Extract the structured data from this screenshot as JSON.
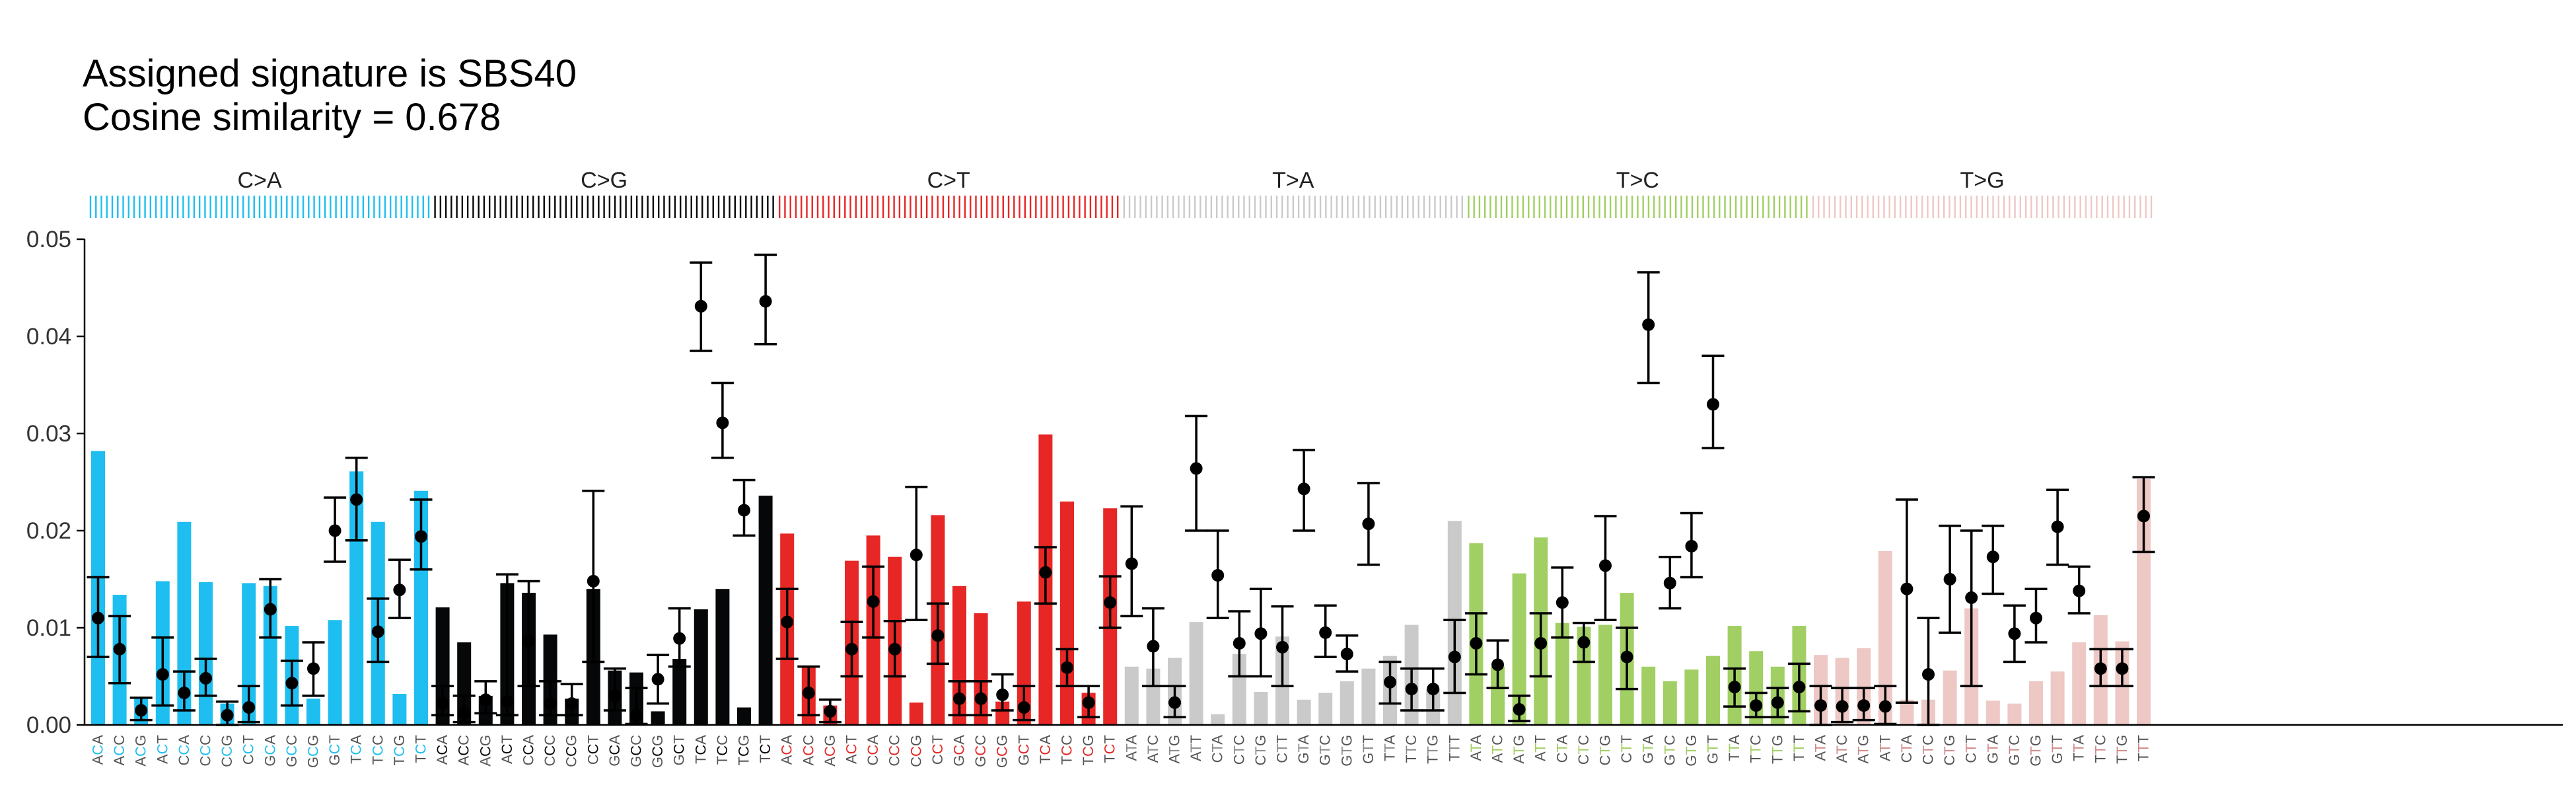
{
  "chart_data": {
    "type": "bar",
    "title": [
      "Assigned signature is SBS40",
      "Cosine similarity = 0.678"
    ],
    "xlabel": "",
    "ylabel": "",
    "ylim": [
      0,
      0.05
    ],
    "yticks": [
      0.0,
      0.01,
      0.02,
      0.03,
      0.04,
      0.05
    ],
    "ytick_labels": [
      "0.00",
      "0.01",
      "0.02",
      "0.03",
      "0.04",
      "0.05"
    ],
    "grid": false,
    "legend": "none",
    "groups": [
      {
        "label": "C>A",
        "color": "#1ebff0",
        "ref": "C"
      },
      {
        "label": "C>G",
        "color": "#050708",
        "ref": "C"
      },
      {
        "label": "C>T",
        "color": "#e62725",
        "ref": "C"
      },
      {
        "label": "T>A",
        "color": "#cbcacb",
        "ref": "T"
      },
      {
        "label": "T>C",
        "color": "#a1cf64",
        "ref": "T"
      },
      {
        "label": "T>G",
        "color": "#edc8c5",
        "ref": "T"
      }
    ],
    "contexts": [
      "A_A",
      "A_C",
      "A_G",
      "A_T",
      "C_A",
      "C_C",
      "C_G",
      "C_T",
      "G_A",
      "G_C",
      "G_G",
      "G_T",
      "T_A",
      "T_C",
      "T_G",
      "T_T"
    ],
    "bar_series": {
      "values": [
        [
          0.0282,
          0.0134,
          0.0027,
          0.0148,
          0.0209,
          0.0147,
          0.0022,
          0.0146,
          0.0143,
          0.0102,
          0.0027,
          0.0108,
          0.0261,
          0.0209,
          0.0032,
          0.0241
        ],
        [
          0.0121,
          0.0085,
          0.003,
          0.0146,
          0.0136,
          0.0093,
          0.0027,
          0.014,
          0.0056,
          0.0054,
          0.0014,
          0.0068,
          0.0119,
          0.014,
          0.0018,
          0.0236
        ],
        [
          0.0197,
          0.0061,
          0.002,
          0.0169,
          0.0195,
          0.0173,
          0.0023,
          0.0216,
          0.0143,
          0.0115,
          0.0024,
          0.0127,
          0.0299,
          0.023,
          0.0033,
          0.0223
        ],
        [
          0.006,
          0.0058,
          0.0069,
          0.0106,
          0.0011,
          0.0073,
          0.0034,
          0.0091,
          0.0026,
          0.0033,
          0.0045,
          0.0058,
          0.0071,
          0.0103,
          0.0037,
          0.021
        ],
        [
          0.0187,
          0.006,
          0.0156,
          0.0193,
          0.0105,
          0.0101,
          0.0103,
          0.0136,
          0.006,
          0.0045,
          0.0057,
          0.0071,
          0.0102,
          0.0076,
          0.006,
          0.0102
        ],
        [
          0.0072,
          0.0069,
          0.0079,
          0.0179,
          0.0026,
          0.0026,
          0.0056,
          0.012,
          0.0025,
          0.0022,
          0.0045,
          0.0055,
          0.0085,
          0.0113,
          0.0086,
          0.0253
        ]
      ]
    },
    "point_series": {
      "values": [
        [
          0.011,
          0.0078,
          0.0015,
          0.0052,
          0.0033,
          0.0048,
          0.001,
          0.0018,
          0.0119,
          0.0043,
          0.0058,
          0.02,
          0.0232,
          0.0096,
          0.0139,
          0.0194
        ],
        [
          0.0022,
          0.0012,
          0.0026,
          0.0024,
          0.0086,
          0.0022,
          0.0022,
          0.0148,
          0.003,
          0.001,
          0.0047,
          0.0089,
          0.0431,
          0.0311,
          0.0221,
          0.0436
        ],
        [
          0.0106,
          0.0033,
          0.0014,
          0.0078,
          0.0127,
          0.0078,
          0.0175,
          0.0092,
          0.0027,
          0.0027,
          0.0031,
          0.0018,
          0.0157,
          0.0059,
          0.0023,
          0.0126
        ],
        [
          0.0166,
          0.0081,
          0.0023,
          0.0264,
          0.0154,
          0.0084,
          0.0094,
          0.008,
          0.0243,
          0.0095,
          0.0073,
          0.0207,
          0.0044,
          0.0037,
          0.0037,
          0.007
        ],
        [
          0.0084,
          0.0062,
          0.0016,
          0.0084,
          0.0126,
          0.0085,
          0.0164,
          0.007,
          0.0412,
          0.0146,
          0.0184,
          0.033,
          0.0039,
          0.002,
          0.0023,
          0.0039
        ],
        [
          0.002,
          0.0019,
          0.002,
          0.0019,
          0.014,
          0.0052,
          0.015,
          0.0131,
          0.0173,
          0.0094,
          0.011,
          0.0204,
          0.0138,
          0.0058,
          0.0058,
          0.0215
        ]
      ],
      "error_low": [
        [
          0.007,
          0.0043,
          0.0005,
          0.002,
          0.0015,
          0.003,
          0.0,
          0.0003,
          0.009,
          0.002,
          0.003,
          0.0168,
          0.019,
          0.0065,
          0.011,
          0.016
        ],
        [
          0.001,
          0.0003,
          0.0012,
          0.001,
          0.004,
          0.001,
          0.001,
          0.0065,
          0.0015,
          0.0001,
          0.0022,
          0.006,
          0.0385,
          0.0275,
          0.0195,
          0.0392
        ],
        [
          0.0068,
          0.001,
          0.0003,
          0.005,
          0.009,
          0.005,
          0.0108,
          0.0063,
          0.001,
          0.001,
          0.0015,
          0.0005,
          0.0125,
          0.004,
          0.0008,
          0.01
        ],
        [
          0.0112,
          0.004,
          0.0008,
          0.02,
          0.011,
          0.005,
          0.005,
          0.004,
          0.02,
          0.007,
          0.0055,
          0.0165,
          0.0022,
          0.0015,
          0.0015,
          0.0033
        ],
        [
          0.0052,
          0.0038,
          0.0004,
          0.005,
          0.009,
          0.0065,
          0.0108,
          0.0037,
          0.0352,
          0.012,
          0.0152,
          0.0285,
          0.0019,
          0.0008,
          0.0008,
          0.0014
        ],
        [
          0.0,
          0.0003,
          0.0005,
          0.0001,
          0.0023,
          0.0,
          0.0095,
          0.004,
          0.0135,
          0.0065,
          0.0085,
          0.0165,
          0.0115,
          0.004,
          0.004,
          0.0178
        ]
      ],
      "error_high": [
        [
          0.0152,
          0.0112,
          0.0028,
          0.009,
          0.0055,
          0.0068,
          0.0024,
          0.004,
          0.015,
          0.0066,
          0.0085,
          0.0234,
          0.0275,
          0.013,
          0.017,
          0.0232
        ],
        [
          0.004,
          0.003,
          0.0045,
          0.0155,
          0.0148,
          0.0045,
          0.0042,
          0.0241,
          0.0058,
          0.0038,
          0.0072,
          0.012,
          0.0476,
          0.0352,
          0.0252,
          0.0484
        ],
        [
          0.014,
          0.006,
          0.0026,
          0.0106,
          0.0163,
          0.0107,
          0.0245,
          0.0125,
          0.0045,
          0.0045,
          0.0052,
          0.004,
          0.0183,
          0.0078,
          0.004,
          0.0153
        ],
        [
          0.0225,
          0.012,
          0.004,
          0.0318,
          0.02,
          0.0117,
          0.014,
          0.0122,
          0.0283,
          0.0123,
          0.0092,
          0.0249,
          0.0065,
          0.0058,
          0.0058,
          0.0108
        ],
        [
          0.0115,
          0.0087,
          0.003,
          0.0115,
          0.0162,
          0.0105,
          0.0215,
          0.01,
          0.0466,
          0.0173,
          0.0218,
          0.038,
          0.0058,
          0.0033,
          0.0038,
          0.0063
        ],
        [
          0.004,
          0.0038,
          0.0038,
          0.004,
          0.0232,
          0.011,
          0.0205,
          0.02,
          0.0205,
          0.0123,
          0.014,
          0.0242,
          0.0163,
          0.0078,
          0.0078,
          0.0255
        ]
      ]
    }
  }
}
